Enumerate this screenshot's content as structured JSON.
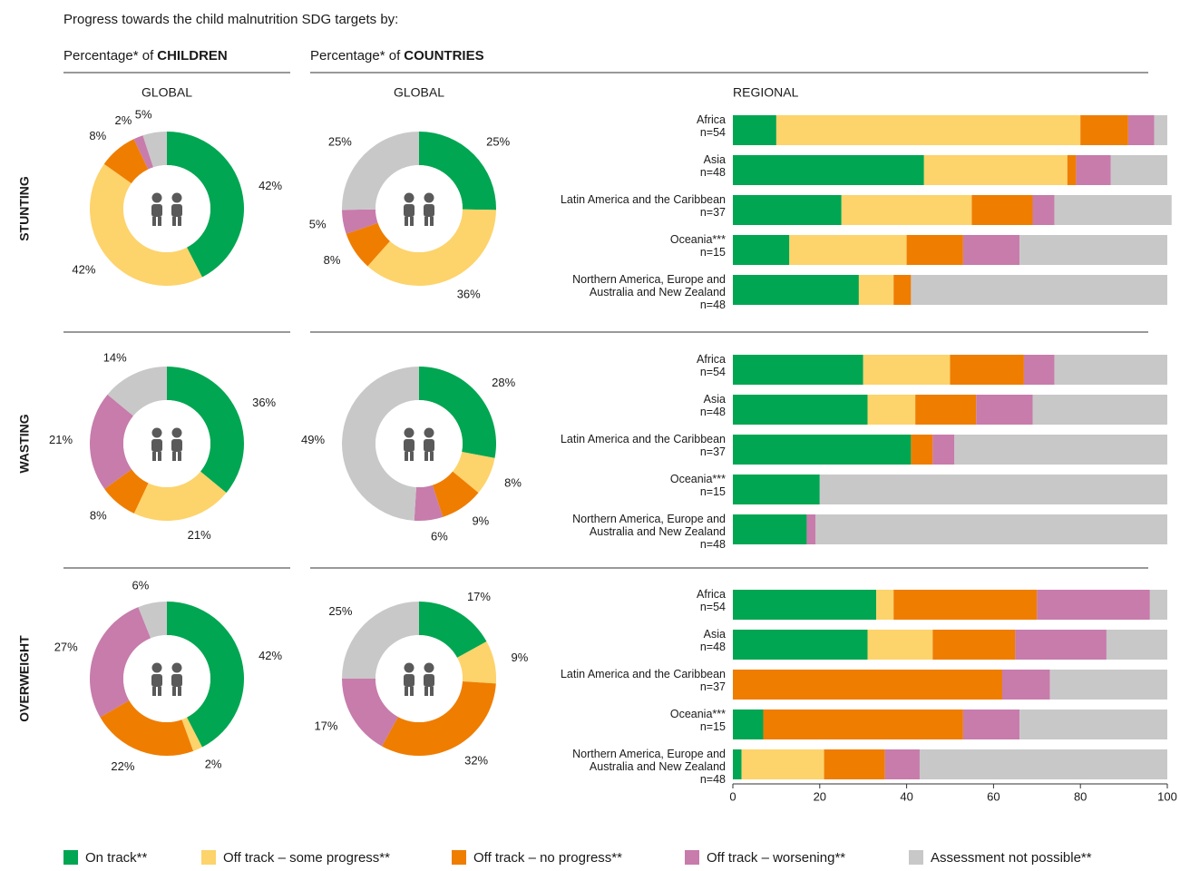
{
  "title": "Progress towards the child malnutrition SDG targets by:",
  "column_heads": [
    {
      "prefix": "Percentage* of",
      "bold": "CHILDREN",
      "sub": "GLOBAL"
    },
    {
      "prefix": "Percentage* of",
      "bold": "COUNTRIES",
      "sub": "GLOBAL",
      "sub2": "REGIONAL"
    }
  ],
  "rows": [
    "STUNTING",
    "WASTING",
    "OVERWEIGHT"
  ],
  "legend": {
    "names": [
      "On track**",
      "Off track – some progress**",
      "Off track – no progress**",
      "Off track – worsening**",
      "Assessment not possible**"
    ],
    "colors": [
      "#00a651",
      "#fdd36b",
      "#ef7d00",
      "#c77cab",
      "#c8c8c8"
    ]
  },
  "chart_data": [
    {
      "type": "pie",
      "values": [
        42,
        42,
        8,
        2,
        5
      ],
      "value_labels": [
        "42%",
        "42%",
        "8%",
        "2%",
        "5%"
      ]
    },
    {
      "type": "pie",
      "values": [
        25,
        36,
        8,
        5,
        25
      ],
      "value_labels": [
        "25%",
        "36%",
        "8%",
        "5%",
        "25%"
      ]
    },
    {
      "type": "bar",
      "categories": [
        "Africa",
        "Asia",
        "Latin America and the Caribbean",
        "Oceania***",
        "Northern America, Europe and Australia and New Zealand"
      ],
      "n_labels": [
        "n=54",
        "n=48",
        "n=37",
        "n=15",
        "n=48"
      ],
      "xlim": [
        0,
        100
      ],
      "series": [
        {
          "values": [
            10,
            44,
            25,
            13,
            29
          ]
        },
        {
          "values": [
            70,
            33,
            30,
            27,
            8
          ]
        },
        {
          "values": [
            11,
            2,
            14,
            13,
            4
          ]
        },
        {
          "values": [
            6,
            8,
            5,
            13,
            0
          ]
        },
        {
          "values": [
            3,
            13,
            27,
            34,
            59
          ]
        }
      ]
    },
    {
      "type": "pie",
      "values": [
        36,
        21,
        8,
        21,
        14
      ],
      "value_labels": [
        "36%",
        "21%",
        "8%",
        "21%",
        "14%"
      ]
    },
    {
      "type": "pie",
      "values": [
        28,
        8,
        9,
        6,
        49
      ],
      "value_labels": [
        "28%",
        "8%",
        "9%",
        "6%",
        "49%"
      ]
    },
    {
      "type": "bar",
      "categories": [
        "Africa",
        "Asia",
        "Latin America and the Caribbean",
        "Oceania***",
        "Northern America, Europe and Australia and New Zealand"
      ],
      "n_labels": [
        "n=54",
        "n=48",
        "n=37",
        "n=15",
        "n=48"
      ],
      "xlim": [
        0,
        100
      ],
      "series": [
        {
          "values": [
            30,
            31,
            41,
            20,
            17
          ]
        },
        {
          "values": [
            20,
            11,
            0,
            0,
            0
          ]
        },
        {
          "values": [
            17,
            14,
            5,
            0,
            0
          ]
        },
        {
          "values": [
            7,
            13,
            5,
            0,
            2
          ]
        },
        {
          "values": [
            26,
            31,
            49,
            80,
            81
          ]
        }
      ]
    },
    {
      "type": "pie",
      "values": [
        42,
        2,
        22,
        27,
        6
      ],
      "value_labels": [
        "42%",
        "2%",
        "22%",
        "27%",
        "6%"
      ]
    },
    {
      "type": "pie",
      "values": [
        17,
        9,
        32,
        17,
        25
      ],
      "value_labels": [
        "17%",
        "9%",
        "32%",
        "17%",
        "25%"
      ]
    },
    {
      "type": "bar",
      "categories": [
        "Africa",
        "Asia",
        "Latin America and the Caribbean",
        "Oceania***",
        "Northern America, Europe and Australia and New Zealand"
      ],
      "n_labels": [
        "n=54",
        "n=48",
        "n=37",
        "n=15",
        "n=48"
      ],
      "xlim": [
        0,
        100
      ],
      "xticks": [
        0,
        20,
        40,
        60,
        80,
        100
      ],
      "series": [
        {
          "values": [
            33,
            31,
            0,
            7,
            2
          ]
        },
        {
          "values": [
            4,
            15,
            0,
            0,
            19
          ]
        },
        {
          "values": [
            33,
            19,
            62,
            46,
            14
          ]
        },
        {
          "values": [
            26,
            21,
            11,
            13,
            8
          ]
        },
        {
          "values": [
            4,
            14,
            27,
            34,
            57
          ]
        }
      ]
    }
  ]
}
